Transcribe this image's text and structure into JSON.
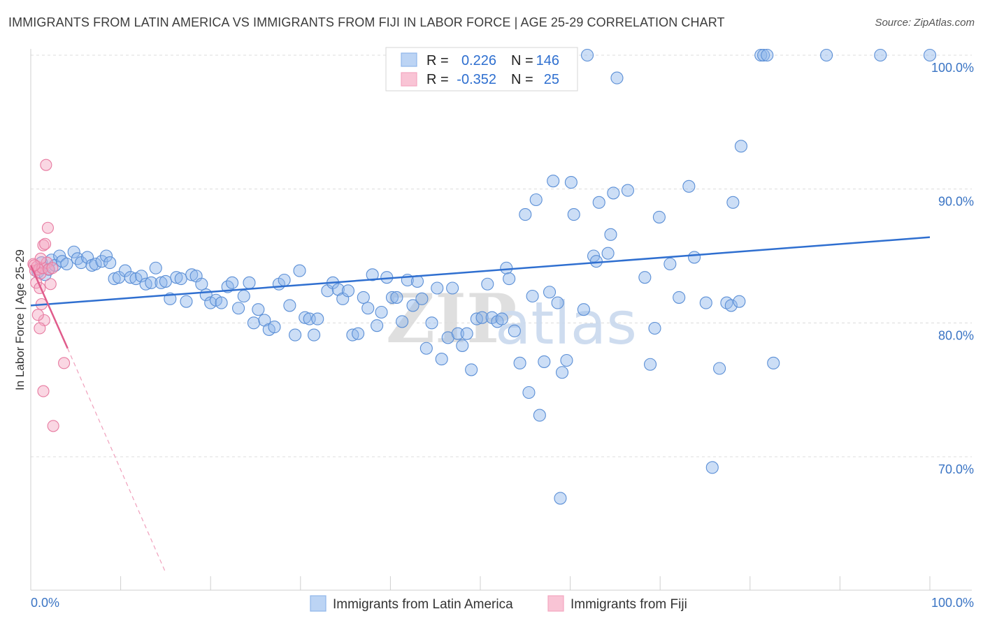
{
  "header": {
    "title": "IMMIGRANTS FROM LATIN AMERICA VS IMMIGRANTS FROM FIJI IN LABOR FORCE | AGE 25-29 CORRELATION CHART",
    "source": "Source: ZipAtlas.com"
  },
  "chart_data": {
    "type": "scatter",
    "title": "IMMIGRANTS FROM LATIN AMERICA VS IMMIGRANTS FROM FIJI IN LABOR FORCE | AGE 25-29 CORRELATION CHART",
    "xlabel": "",
    "ylabel": "In Labor Force | Age 25-29",
    "xlim": [
      0,
      100
    ],
    "ylim": [
      60,
      101.5
    ],
    "x_tick_labels": [
      "0.0%",
      "100.0%"
    ],
    "y_ticks": [
      70,
      80,
      90,
      100
    ],
    "y_tick_labels": [
      "70.0%",
      "80.0%",
      "90.0%",
      "100.0%"
    ],
    "grid": true,
    "watermark": {
      "zip": "ZIP",
      "atlas": "atlas"
    },
    "legend_stats": [
      {
        "r_label": "R =",
        "r_value": "0.226",
        "n_label": "N =",
        "n_value": "146",
        "color": "#8fb6ea"
      },
      {
        "r_label": "R =",
        "r_value": "-0.352",
        "n_label": "N =",
        "n_value": "25",
        "color": "#f4a7c0"
      }
    ],
    "series": [
      {
        "name": "Immigrants from Latin America",
        "color": "#8fb6ea",
        "stroke": "#5b8fd6",
        "trend": {
          "x": [
            0,
            100
          ],
          "y": [
            81.3,
            86.4
          ],
          "color": "#2f6fd0"
        },
        "points": [
          [
            0.8,
            83.8
          ],
          [
            1.2,
            84.5
          ],
          [
            1.6,
            83.6
          ],
          [
            2.0,
            84.0
          ],
          [
            2.3,
            84.7
          ],
          [
            2.7,
            84.3
          ],
          [
            3.2,
            85.0
          ],
          [
            3.5,
            84.6
          ],
          [
            4.0,
            84.4
          ],
          [
            4.8,
            85.3
          ],
          [
            5.2,
            84.8
          ],
          [
            5.6,
            84.5
          ],
          [
            6.3,
            84.9
          ],
          [
            6.8,
            84.3
          ],
          [
            7.2,
            84.4
          ],
          [
            7.9,
            84.6
          ],
          [
            8.4,
            85.0
          ],
          [
            8.8,
            84.5
          ],
          [
            9.3,
            83.3
          ],
          [
            9.8,
            83.4
          ],
          [
            10.5,
            83.9
          ],
          [
            11.1,
            83.4
          ],
          [
            11.7,
            83.3
          ],
          [
            12.3,
            83.5
          ],
          [
            12.8,
            82.9
          ],
          [
            13.4,
            83.0
          ],
          [
            13.9,
            84.1
          ],
          [
            14.5,
            83.0
          ],
          [
            15.0,
            83.1
          ],
          [
            15.5,
            81.8
          ],
          [
            16.2,
            83.4
          ],
          [
            16.7,
            83.3
          ],
          [
            17.3,
            81.6
          ],
          [
            17.9,
            83.6
          ],
          [
            18.4,
            83.5
          ],
          [
            19.0,
            82.9
          ],
          [
            19.5,
            82.1
          ],
          [
            20.0,
            81.5
          ],
          [
            20.6,
            81.7
          ],
          [
            21.2,
            81.5
          ],
          [
            21.9,
            82.7
          ],
          [
            22.4,
            83.0
          ],
          [
            23.1,
            81.1
          ],
          [
            23.7,
            82.0
          ],
          [
            24.3,
            83.0
          ],
          [
            24.8,
            80.0
          ],
          [
            25.3,
            81.0
          ],
          [
            26.0,
            80.2
          ],
          [
            26.5,
            79.5
          ],
          [
            27.1,
            79.7
          ],
          [
            27.6,
            82.9
          ],
          [
            28.2,
            83.2
          ],
          [
            28.8,
            81.3
          ],
          [
            29.4,
            79.1
          ],
          [
            29.9,
            83.9
          ],
          [
            30.5,
            80.4
          ],
          [
            31.0,
            80.3
          ],
          [
            31.5,
            79.1
          ],
          [
            31.9,
            80.3
          ],
          [
            33.0,
            82.4
          ],
          [
            33.6,
            83.0
          ],
          [
            34.2,
            82.5
          ],
          [
            34.7,
            81.8
          ],
          [
            35.3,
            82.4
          ],
          [
            35.8,
            79.1
          ],
          [
            36.4,
            79.2
          ],
          [
            37.0,
            81.9
          ],
          [
            37.5,
            81.1
          ],
          [
            38.0,
            83.6
          ],
          [
            38.5,
            79.8
          ],
          [
            39.0,
            80.8
          ],
          [
            39.6,
            83.4
          ],
          [
            40.2,
            81.9
          ],
          [
            40.7,
            81.9
          ],
          [
            41.3,
            80.1
          ],
          [
            41.9,
            83.2
          ],
          [
            42.5,
            81.3
          ],
          [
            43.0,
            83.1
          ],
          [
            43.5,
            81.8
          ],
          [
            44.0,
            78.1
          ],
          [
            44.6,
            80.0
          ],
          [
            45.2,
            82.6
          ],
          [
            45.7,
            77.3
          ],
          [
            46.4,
            78.9
          ],
          [
            46.9,
            82.6
          ],
          [
            47.5,
            79.2
          ],
          [
            48.0,
            78.3
          ],
          [
            48.5,
            79.2
          ],
          [
            49.0,
            76.5
          ],
          [
            49.6,
            80.3
          ],
          [
            50.2,
            80.4
          ],
          [
            50.8,
            82.9
          ],
          [
            51.3,
            80.4
          ],
          [
            51.9,
            80.1
          ],
          [
            52.4,
            80.3
          ],
          [
            52.9,
            84.1
          ],
          [
            53.2,
            83.3
          ],
          [
            53.8,
            79.4
          ],
          [
            54.4,
            77.0
          ],
          [
            55.0,
            88.1
          ],
          [
            55.4,
            74.8
          ],
          [
            56.2,
            89.2
          ],
          [
            56.6,
            73.1
          ],
          [
            57.1,
            77.1
          ],
          [
            57.7,
            82.3
          ],
          [
            58.1,
            90.6
          ],
          [
            58.6,
            81.5
          ],
          [
            59.1,
            76.3
          ],
          [
            59.6,
            77.2
          ],
          [
            60.1,
            90.5
          ],
          [
            60.4,
            88.1
          ],
          [
            61.5,
            81.0
          ],
          [
            61.9,
            100.0
          ],
          [
            62.6,
            85.0
          ],
          [
            62.9,
            84.6
          ],
          [
            63.2,
            89.0
          ],
          [
            64.2,
            85.2
          ],
          [
            64.5,
            86.6
          ],
          [
            64.8,
            89.7
          ],
          [
            65.2,
            98.3
          ],
          [
            66.4,
            89.9
          ],
          [
            68.3,
            83.4
          ],
          [
            68.9,
            76.9
          ],
          [
            69.4,
            79.6
          ],
          [
            69.9,
            87.9
          ],
          [
            71.1,
            84.4
          ],
          [
            72.1,
            81.9
          ],
          [
            73.2,
            90.2
          ],
          [
            73.8,
            84.9
          ],
          [
            75.1,
            81.5
          ],
          [
            75.8,
            69.2
          ],
          [
            76.6,
            76.6
          ],
          [
            77.4,
            81.5
          ],
          [
            77.9,
            81.3
          ],
          [
            78.1,
            89.0
          ],
          [
            78.8,
            81.6
          ],
          [
            79.0,
            93.2
          ],
          [
            81.2,
            100.0
          ],
          [
            81.5,
            100.0
          ],
          [
            81.9,
            100.0
          ],
          [
            82.6,
            77.0
          ],
          [
            88.5,
            100.0
          ],
          [
            94.5,
            100.0
          ],
          [
            100.0,
            100.0
          ],
          [
            55.8,
            82.0
          ],
          [
            58.9,
            66.9
          ]
        ]
      },
      {
        "name": "Immigrants from Fiji",
        "color": "#f4a7c0",
        "stroke": "#e77aa0",
        "trend": {
          "x": [
            0,
            4.1
          ],
          "y": [
            84.3,
            78.1
          ],
          "color": "#e05b8b"
        },
        "trend_ext": {
          "x": [
            4.1,
            14.9
          ],
          "y": [
            78.1,
            61.5
          ],
          "color": "#f0a0bc"
        },
        "points": [
          [
            0.3,
            84.4
          ],
          [
            0.5,
            83.9
          ],
          [
            0.7,
            84.2
          ],
          [
            0.9,
            84.0
          ],
          [
            1.1,
            83.7
          ],
          [
            1.3,
            84.1
          ],
          [
            0.6,
            83.0
          ],
          [
            1.0,
            82.6
          ],
          [
            1.4,
            85.8
          ],
          [
            1.6,
            85.9
          ],
          [
            1.8,
            84.5
          ],
          [
            2.0,
            84.0
          ],
          [
            1.2,
            81.4
          ],
          [
            1.5,
            80.2
          ],
          [
            1.0,
            79.6
          ],
          [
            2.2,
            82.9
          ],
          [
            0.8,
            80.6
          ],
          [
            1.9,
            87.1
          ],
          [
            1.7,
            91.8
          ],
          [
            3.7,
            77.0
          ],
          [
            1.4,
            74.9
          ],
          [
            2.5,
            72.3
          ],
          [
            1.1,
            84.8
          ],
          [
            0.4,
            84.3
          ],
          [
            2.4,
            84.1
          ]
        ]
      }
    ]
  },
  "bottom_legend": {
    "items": [
      {
        "label": "Immigrants from Latin America",
        "color": "#bcd4f4"
      },
      {
        "label": "Immigrants from Fiji",
        "color": "#f9c4d5"
      }
    ]
  }
}
